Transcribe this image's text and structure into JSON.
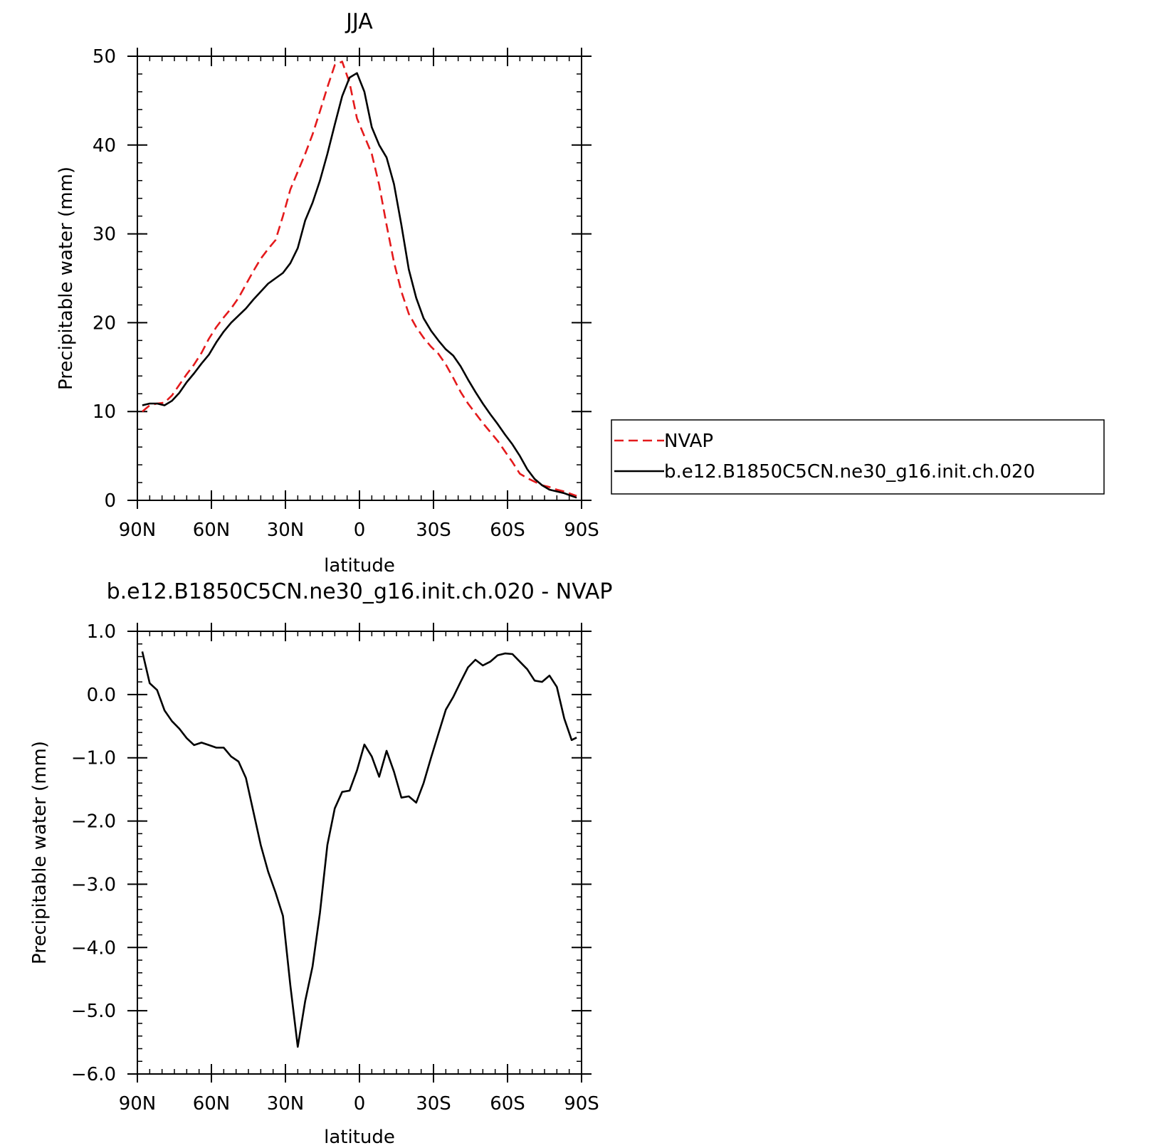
{
  "chart_data": [
    {
      "type": "line",
      "title": "JJA",
      "xlabel": "latitude",
      "ylabel": "Precipitable water (mm)",
      "xlim": [
        90,
        -90
      ],
      "ylim": [
        0,
        50
      ],
      "x_ticks": [
        {
          "value": 90,
          "label": "90N"
        },
        {
          "value": 60,
          "label": "60N"
        },
        {
          "value": 30,
          "label": "30N"
        },
        {
          "value": 0,
          "label": "0"
        },
        {
          "value": -30,
          "label": "30S"
        },
        {
          "value": -60,
          "label": "60S"
        },
        {
          "value": -90,
          "label": "90S"
        }
      ],
      "y_ticks": [
        {
          "value": 0,
          "label": "0"
        },
        {
          "value": 10,
          "label": "10"
        },
        {
          "value": 20,
          "label": "20"
        },
        {
          "value": 30,
          "label": "30"
        },
        {
          "value": 40,
          "label": "40"
        },
        {
          "value": 50,
          "label": "50"
        }
      ],
      "legend_position": "right",
      "series": [
        {
          "name": "NVAP",
          "color": "#e41a1c",
          "style": "dashed",
          "x": [
            88,
            85,
            82,
            79,
            76,
            73,
            70,
            67,
            64,
            61,
            58,
            55,
            52,
            49,
            46,
            43,
            40,
            37,
            34,
            31,
            28,
            25,
            22,
            19,
            16,
            13,
            10,
            7,
            4,
            1,
            -2,
            -5,
            -8,
            -11,
            -14,
            -17,
            -20,
            -23,
            -26,
            -29,
            -32,
            -35,
            -38,
            -41,
            -44,
            -47,
            -50,
            -53,
            -56,
            -59,
            -62,
            -65,
            -68,
            -71,
            -74,
            -77,
            -80,
            -83,
            -86,
            -88
          ],
          "y": [
            10.0,
            10.7,
            10.9,
            11.0,
            11.8,
            13.0,
            14.2,
            15.3,
            16.6,
            18.2,
            19.5,
            20.6,
            21.6,
            22.8,
            24.3,
            25.8,
            27.2,
            28.3,
            29.3,
            32.0,
            35.0,
            37.0,
            39.0,
            41.2,
            43.8,
            46.5,
            49.0,
            49.4,
            47.0,
            43.0,
            41.0,
            39.0,
            35.5,
            31.0,
            26.8,
            23.5,
            21.0,
            19.5,
            18.3,
            17.3,
            16.5,
            15.3,
            13.8,
            12.2,
            10.9,
            9.8,
            8.7,
            7.7,
            6.7,
            5.5,
            4.3,
            3.0,
            2.5,
            2.1,
            1.7,
            1.5,
            1.2,
            1.0,
            0.7,
            0.5
          ]
        },
        {
          "name": "b.e12.B1850C5CN.ne30_g16.init.ch.020",
          "color": "#000000",
          "style": "solid",
          "x": [
            88,
            85,
            82,
            79,
            76,
            73,
            70,
            67,
            64,
            61,
            58,
            55,
            52,
            49,
            46,
            43,
            40,
            37,
            34,
            31,
            28,
            25,
            22,
            19,
            16,
            13,
            10,
            7,
            4,
            1,
            -2,
            -5,
            -8,
            -11,
            -14,
            -17,
            -20,
            -23,
            -26,
            -29,
            -32,
            -35,
            -38,
            -41,
            -44,
            -47,
            -50,
            -53,
            -56,
            -59,
            -62,
            -65,
            -68,
            -71,
            -74,
            -77,
            -80,
            -83,
            -86,
            -88
          ],
          "y": [
            10.7,
            10.9,
            10.9,
            10.7,
            11.2,
            12.1,
            13.3,
            14.3,
            15.4,
            16.4,
            17.8,
            19.0,
            20.0,
            20.8,
            21.6,
            22.6,
            23.5,
            24.4,
            25.0,
            25.6,
            26.7,
            28.4,
            31.5,
            33.5,
            36.0,
            39.0,
            42.3,
            45.5,
            47.6,
            48.1,
            46.0,
            42.0,
            40.0,
            38.6,
            35.6,
            31.0,
            26.0,
            22.8,
            20.5,
            19.1,
            18.0,
            17.0,
            16.3,
            15.1,
            13.6,
            12.2,
            10.9,
            9.7,
            8.6,
            7.4,
            6.3,
            5.0,
            3.5,
            2.4,
            1.7,
            1.2,
            1.0,
            0.8,
            0.5,
            0.3
          ]
        }
      ]
    },
    {
      "type": "line",
      "title": "b.e12.B1850C5CN.ne30_g16.init.ch.020 - NVAP",
      "xlabel": "latitude",
      "ylabel": "Precipitable water (mm)",
      "xlim": [
        90,
        -90
      ],
      "ylim": [
        -6.0,
        1.0
      ],
      "x_ticks": [
        {
          "value": 90,
          "label": "90N"
        },
        {
          "value": 60,
          "label": "60N"
        },
        {
          "value": 30,
          "label": "30N"
        },
        {
          "value": 0,
          "label": "0"
        },
        {
          "value": -30,
          "label": "30S"
        },
        {
          "value": -60,
          "label": "60S"
        },
        {
          "value": -90,
          "label": "90S"
        }
      ],
      "y_ticks": [
        {
          "value": 1.0,
          "label": "1.0"
        },
        {
          "value": 0.0,
          "label": "0.0"
        },
        {
          "value": -1.0,
          "label": "−1.0"
        },
        {
          "value": -2.0,
          "label": "−2.0"
        },
        {
          "value": -3.0,
          "label": "−3.0"
        },
        {
          "value": -4.0,
          "label": "−4.0"
        },
        {
          "value": -5.0,
          "label": "−5.0"
        },
        {
          "value": -6.0,
          "label": "−6.0"
        }
      ],
      "series": [
        {
          "color": "#000000",
          "style": "solid",
          "x": [
            88,
            85,
            82,
            79,
            76,
            73,
            70,
            67,
            64,
            61,
            58,
            55,
            52,
            49,
            46,
            43,
            40,
            37,
            34,
            31,
            28,
            25,
            22,
            19,
            16,
            13,
            10,
            7,
            4,
            1,
            -2,
            -5,
            -8,
            -11,
            -14,
            -17,
            -20,
            -23,
            -26,
            -29,
            -32,
            -35,
            -38,
            -41,
            -44,
            -47,
            -50,
            -53,
            -56,
            -59,
            -62,
            -65,
            -68,
            -71,
            -74,
            -77,
            -80,
            -83,
            -86,
            -88
          ],
          "y": [
            0.68,
            0.18,
            0.07,
            -0.25,
            -0.42,
            -0.54,
            -0.69,
            -0.8,
            -0.76,
            -0.8,
            -0.84,
            -0.84,
            -0.98,
            -1.06,
            -1.32,
            -1.85,
            -2.38,
            -2.8,
            -3.13,
            -3.5,
            -4.6,
            -5.57,
            -4.85,
            -4.3,
            -3.45,
            -2.38,
            -1.8,
            -1.54,
            -1.52,
            -1.2,
            -0.79,
            -0.98,
            -1.3,
            -0.89,
            -1.22,
            -1.63,
            -1.61,
            -1.71,
            -1.4,
            -1.0,
            -0.62,
            -0.24,
            -0.04,
            0.2,
            0.43,
            0.55,
            0.46,
            0.52,
            0.62,
            0.65,
            0.64,
            0.52,
            0.4,
            0.22,
            0.2,
            0.3,
            0.12,
            -0.38,
            -0.72,
            -0.68
          ]
        }
      ]
    }
  ]
}
